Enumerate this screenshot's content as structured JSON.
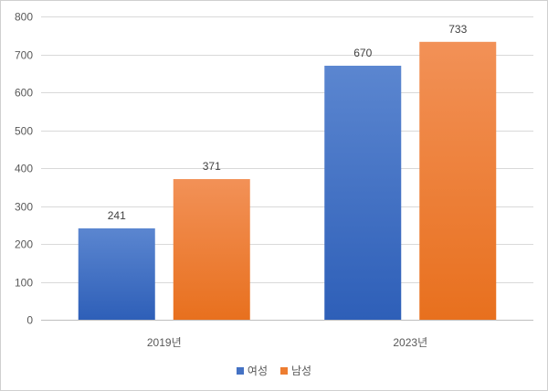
{
  "chart_data": {
    "type": "bar",
    "categories": [
      "2019년",
      "2023년"
    ],
    "series": [
      {
        "name": "여성",
        "values": [
          241,
          670
        ],
        "color": "#4472C4"
      },
      {
        "name": "남성",
        "values": [
          371,
          733
        ],
        "color": "#ED7D31"
      }
    ],
    "ylim": [
      0,
      800
    ],
    "yticks": [
      0,
      100,
      200,
      300,
      400,
      500,
      600,
      700,
      800
    ],
    "grid": true,
    "legend_position": "bottom"
  }
}
